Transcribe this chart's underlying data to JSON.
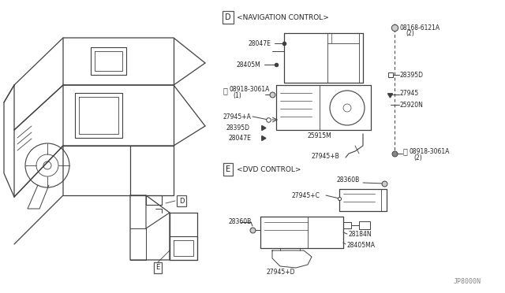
{
  "background_color": "#ffffff",
  "line_color": "#404040",
  "text_color": "#222222",
  "fig_width": 6.4,
  "fig_height": 3.72,
  "dpi": 100,
  "section_D_label": "D",
  "section_D_title": "<NAVIGATION CONTROL>",
  "section_E_label": "E",
  "section_E_title": "<DVD CONTROL>",
  "watermark": "JP8000N",
  "border_color": "#555555"
}
